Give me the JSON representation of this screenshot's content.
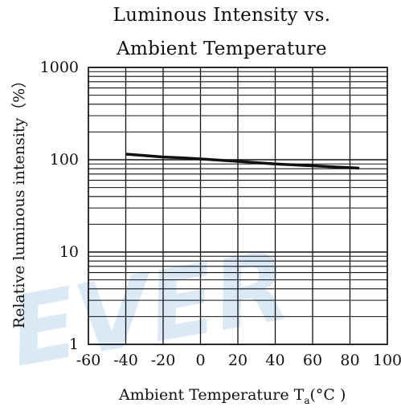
{
  "chart_data": {
    "type": "line",
    "title_line1": "Luminous Intensity vs.",
    "title_line2": "Ambient Temperature",
    "ylabel": "Relative luminous intensity（%）",
    "xlabel_main": "Ambient Temperature T",
    "xlabel_sub": "a",
    "xlabel_unit": "(°C )",
    "xlim": [
      -60,
      100
    ],
    "ylim": [
      1,
      1000
    ],
    "yscale": "log",
    "grid": true,
    "x_ticks": [
      "-60",
      "-40",
      "-20",
      "0",
      "20",
      "40",
      "60",
      "80",
      "100"
    ],
    "y_ticks": [
      "1",
      "10",
      "100",
      "1000"
    ],
    "series": [
      {
        "x": [
          -40,
          -30,
          -20,
          -10,
          0,
          10,
          20,
          30,
          40,
          50,
          60,
          70,
          80,
          85
        ],
        "y": [
          115,
          111,
          107,
          105,
          102,
          99,
          96,
          93,
          90,
          88,
          86,
          84,
          82,
          81
        ]
      }
    ],
    "watermark": "EVER",
    "colors": {
      "line": "#111111",
      "grid": "#111111",
      "watermark": "#dbe8f6"
    }
  }
}
